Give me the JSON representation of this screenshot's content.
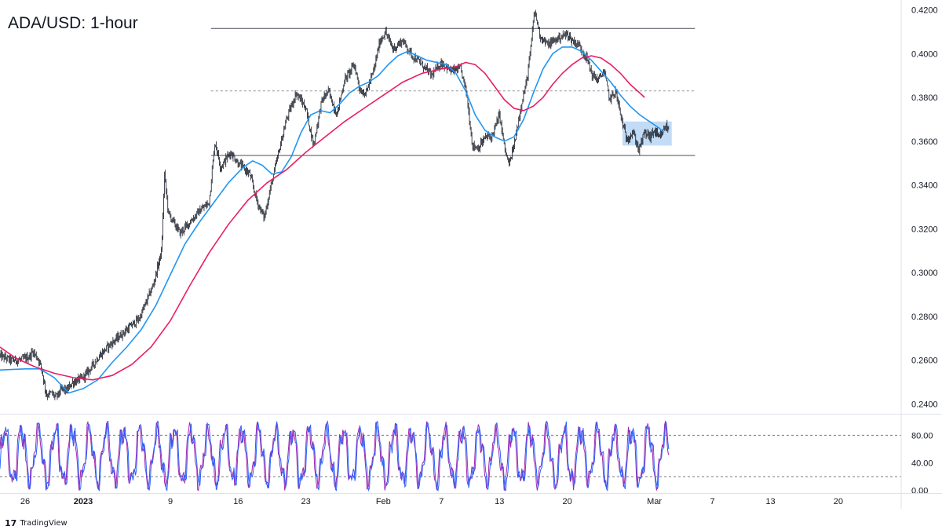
{
  "chart_data": [
    {
      "type": "candlestick",
      "title": "ADA/USD: 1-hour",
      "timeframe": "1-hour",
      "ylim": [
        0.2355,
        0.4245
      ],
      "y_ticks": [
        "0.4200",
        "0.4000",
        "0.3800",
        "0.3600",
        "0.3400",
        "0.3200",
        "0.3000",
        "0.2800",
        "0.2600",
        "0.2400"
      ],
      "x_ticks": [
        {
          "label": "26",
          "day": -7
        },
        {
          "label": "2023",
          "day": -1,
          "bold": true
        },
        {
          "label": "9",
          "day": 8
        },
        {
          "label": "16",
          "day": 15
        },
        {
          "label": "23",
          "day": 22
        },
        {
          "label": "Feb",
          "day": 30
        },
        {
          "label": "7",
          "day": 36
        },
        {
          "label": "13",
          "day": 42
        },
        {
          "label": "20",
          "day": 49
        },
        {
          "label": "Mar",
          "day": 58
        },
        {
          "label": "7",
          "day": 64
        },
        {
          "label": "13",
          "day": 70
        },
        {
          "label": "20",
          "day": 77
        }
      ],
      "x_range_days": [
        -9.6,
        83.5
      ],
      "price_path": [
        [
          -9.6,
          0.262
        ],
        [
          -8.5,
          0.26
        ],
        [
          -7.5,
          0.26
        ],
        [
          -6.6,
          0.2615
        ],
        [
          -6.2,
          0.264
        ],
        [
          -5.6,
          0.26
        ],
        [
          -5.3,
          0.256
        ],
        [
          -4.8,
          0.244
        ],
        [
          -4.3,
          0.245
        ],
        [
          -3.8,
          0.243
        ],
        [
          -3.2,
          0.247
        ],
        [
          -2.7,
          0.246
        ],
        [
          -2.2,
          0.2495
        ],
        [
          -1.5,
          0.251
        ],
        [
          -1.0,
          0.252
        ],
        [
          -0.3,
          0.256
        ],
        [
          0.5,
          0.261
        ],
        [
          1.5,
          0.266
        ],
        [
          2.5,
          0.27
        ],
        [
          3.5,
          0.274
        ],
        [
          4.8,
          0.279
        ],
        [
          6.2,
          0.294
        ],
        [
          7.1,
          0.31
        ],
        [
          7.4,
          0.345
        ],
        [
          7.8,
          0.327
        ],
        [
          9.0,
          0.318
        ],
        [
          10.0,
          0.323
        ],
        [
          11.0,
          0.328
        ],
        [
          12.0,
          0.332
        ],
        [
          12.6,
          0.36
        ],
        [
          13.2,
          0.348
        ],
        [
          14.2,
          0.355
        ],
        [
          15.0,
          0.35
        ],
        [
          16.2,
          0.345
        ],
        [
          17.0,
          0.332
        ],
        [
          17.7,
          0.325
        ],
        [
          18.3,
          0.338
        ],
        [
          19.2,
          0.355
        ],
        [
          20.0,
          0.37
        ],
        [
          21.0,
          0.382
        ],
        [
          22.0,
          0.375
        ],
        [
          22.8,
          0.358
        ],
        [
          23.6,
          0.378
        ],
        [
          24.3,
          0.383
        ],
        [
          25.2,
          0.372
        ],
        [
          26.0,
          0.388
        ],
        [
          27.0,
          0.395
        ],
        [
          27.6,
          0.383
        ],
        [
          28.2,
          0.382
        ],
        [
          29.0,
          0.392
        ],
        [
          29.6,
          0.405
        ],
        [
          30.2,
          0.41
        ],
        [
          31.0,
          0.402
        ],
        [
          32.0,
          0.406
        ],
        [
          33.0,
          0.399
        ],
        [
          34.0,
          0.395
        ],
        [
          35.0,
          0.39
        ],
        [
          36.0,
          0.396
        ],
        [
          37.0,
          0.392
        ],
        [
          38.0,
          0.393
        ],
        [
          38.6,
          0.382
        ],
        [
          39.2,
          0.358
        ],
        [
          39.8,
          0.357
        ],
        [
          40.6,
          0.362
        ],
        [
          41.2,
          0.362
        ],
        [
          42.0,
          0.372
        ],
        [
          42.6,
          0.355
        ],
        [
          43.0,
          0.349
        ],
        [
          43.6,
          0.36
        ],
        [
          44.3,
          0.378
        ],
        [
          44.8,
          0.387
        ],
        [
          45.3,
          0.405
        ],
        [
          45.6,
          0.42
        ],
        [
          46.2,
          0.408
        ],
        [
          47.0,
          0.404
        ],
        [
          48.0,
          0.407
        ],
        [
          49.0,
          0.409
        ],
        [
          49.5,
          0.406
        ],
        [
          50.2,
          0.404
        ],
        [
          51.0,
          0.398
        ],
        [
          51.6,
          0.39
        ],
        [
          52.2,
          0.388
        ],
        [
          52.8,
          0.392
        ],
        [
          53.4,
          0.379
        ],
        [
          54.0,
          0.383
        ],
        [
          54.6,
          0.37
        ],
        [
          55.1,
          0.361
        ],
        [
          55.8,
          0.364
        ],
        [
          56.4,
          0.356
        ],
        [
          57.0,
          0.364
        ],
        [
          57.6,
          0.362
        ],
        [
          58.0,
          0.365
        ],
        [
          58.5,
          0.361
        ],
        [
          59.2,
          0.367
        ],
        [
          59.5,
          0.365
        ]
      ],
      "series": [
        {
          "name": "",
          "type": "moving-average",
          "color": "#2196f3",
          "points": [
            [
              -9.6,
              0.2555
            ],
            [
              -7.0,
              0.256
            ],
            [
              -5.5,
              0.256
            ],
            [
              -4.0,
              0.252
            ],
            [
              -2.5,
              0.245
            ],
            [
              -1.0,
              0.247
            ],
            [
              0.5,
              0.251
            ],
            [
              2.0,
              0.259
            ],
            [
              3.5,
              0.266
            ],
            [
              5.0,
              0.274
            ],
            [
              6.5,
              0.285
            ],
            [
              8.0,
              0.299
            ],
            [
              9.5,
              0.313
            ],
            [
              11.0,
              0.323
            ],
            [
              12.5,
              0.332
            ],
            [
              14.0,
              0.341
            ],
            [
              15.5,
              0.348
            ],
            [
              16.5,
              0.351
            ],
            [
              17.5,
              0.349
            ],
            [
              18.5,
              0.345
            ],
            [
              19.5,
              0.346
            ],
            [
              20.5,
              0.353
            ],
            [
              21.5,
              0.364
            ],
            [
              22.5,
              0.372
            ],
            [
              23.5,
              0.374
            ],
            [
              24.5,
              0.373
            ],
            [
              25.5,
              0.377
            ],
            [
              26.5,
              0.382
            ],
            [
              27.5,
              0.385
            ],
            [
              28.5,
              0.387
            ],
            [
              29.5,
              0.39
            ],
            [
              30.5,
              0.395
            ],
            [
              31.5,
              0.399
            ],
            [
              32.5,
              0.401
            ],
            [
              33.5,
              0.399
            ],
            [
              34.5,
              0.397
            ],
            [
              35.5,
              0.396
            ],
            [
              36.5,
              0.395
            ],
            [
              37.5,
              0.391
            ],
            [
              38.5,
              0.383
            ],
            [
              39.5,
              0.372
            ],
            [
              40.5,
              0.365
            ],
            [
              41.5,
              0.362
            ],
            [
              42.5,
              0.36
            ],
            [
              43.5,
              0.362
            ],
            [
              44.5,
              0.37
            ],
            [
              45.5,
              0.382
            ],
            [
              46.5,
              0.393
            ],
            [
              47.5,
              0.4
            ],
            [
              48.5,
              0.403
            ],
            [
              49.5,
              0.403
            ],
            [
              50.5,
              0.401
            ],
            [
              51.5,
              0.397
            ],
            [
              52.5,
              0.392
            ],
            [
              53.5,
              0.387
            ],
            [
              54.5,
              0.381
            ],
            [
              55.5,
              0.376
            ],
            [
              56.5,
              0.372
            ],
            [
              57.5,
              0.369
            ],
            [
              58.5,
              0.366
            ],
            [
              59.0,
              0.364
            ]
          ]
        },
        {
          "name": "",
          "type": "moving-average",
          "color": "#e91e63",
          "points": [
            [
              -9.6,
              0.266
            ],
            [
              -8.0,
              0.261
            ],
            [
              -6.0,
              0.257
            ],
            [
              -4.0,
              0.254
            ],
            [
              -2.0,
              0.252
            ],
            [
              0.0,
              0.251
            ],
            [
              2.0,
              0.253
            ],
            [
              4.0,
              0.258
            ],
            [
              6.0,
              0.266
            ],
            [
              8.0,
              0.278
            ],
            [
              10.0,
              0.294
            ],
            [
              12.0,
              0.309
            ],
            [
              14.0,
              0.322
            ],
            [
              16.0,
              0.333
            ],
            [
              18.0,
              0.341
            ],
            [
              20.0,
              0.347
            ],
            [
              22.0,
              0.355
            ],
            [
              24.0,
              0.362
            ],
            [
              26.0,
              0.369
            ],
            [
              28.0,
              0.375
            ],
            [
              30.0,
              0.381
            ],
            [
              32.0,
              0.387
            ],
            [
              34.0,
              0.391
            ],
            [
              36.0,
              0.393
            ],
            [
              37.5,
              0.394
            ],
            [
              38.5,
              0.396
            ],
            [
              39.5,
              0.395
            ],
            [
              40.5,
              0.391
            ],
            [
              41.5,
              0.385
            ],
            [
              42.5,
              0.379
            ],
            [
              43.5,
              0.375
            ],
            [
              44.5,
              0.374
            ],
            [
              45.5,
              0.376
            ],
            [
              46.5,
              0.38
            ],
            [
              47.5,
              0.386
            ],
            [
              48.5,
              0.391
            ],
            [
              49.5,
              0.395
            ],
            [
              50.5,
              0.398
            ],
            [
              51.5,
              0.399
            ],
            [
              52.5,
              0.398
            ],
            [
              53.5,
              0.395
            ],
            [
              54.5,
              0.391
            ],
            [
              55.5,
              0.386
            ],
            [
              56.5,
              0.382
            ],
            [
              57.0,
              0.38
            ]
          ]
        }
      ],
      "annotations": [
        {
          "type": "horizontal-line",
          "style": "solid",
          "value": 0.4115,
          "x_from_day": 12.2,
          "x_to_day": 62.2
        },
        {
          "type": "horizontal-line",
          "style": "dashed",
          "value": 0.383,
          "x_from_day": 12.2,
          "x_to_day": 62.2
        },
        {
          "type": "horizontal-line",
          "style": "solid",
          "value": 0.3535,
          "x_from_day": 12.2,
          "x_to_day": 62.2
        },
        {
          "type": "rectangle",
          "color": "#90c0ee",
          "x_from_day": 54.7,
          "x_to_day": 59.8,
          "y_from": 0.358,
          "y_to": 0.369
        }
      ]
    },
    {
      "type": "oscillator",
      "ylim": [
        -4,
        110
      ],
      "y_ticks": [
        "80.00",
        "40.00",
        "0.00"
      ],
      "levels": [
        {
          "value": 80,
          "style": "dashed"
        },
        {
          "value": 20,
          "style": "dashed"
        }
      ],
      "series": [
        {
          "name": "",
          "color": "#9c27b0"
        },
        {
          "name": "",
          "color": "#2962ff"
        }
      ],
      "cycle_days": 1.75
    }
  ],
  "branding": {
    "logo_text": "TradingView",
    "logo_mark": "17"
  },
  "colors": {
    "candle": "#131722",
    "grid": "#e0e3eb",
    "axis_text": "#131722",
    "dashed_level": "#787b86"
  }
}
